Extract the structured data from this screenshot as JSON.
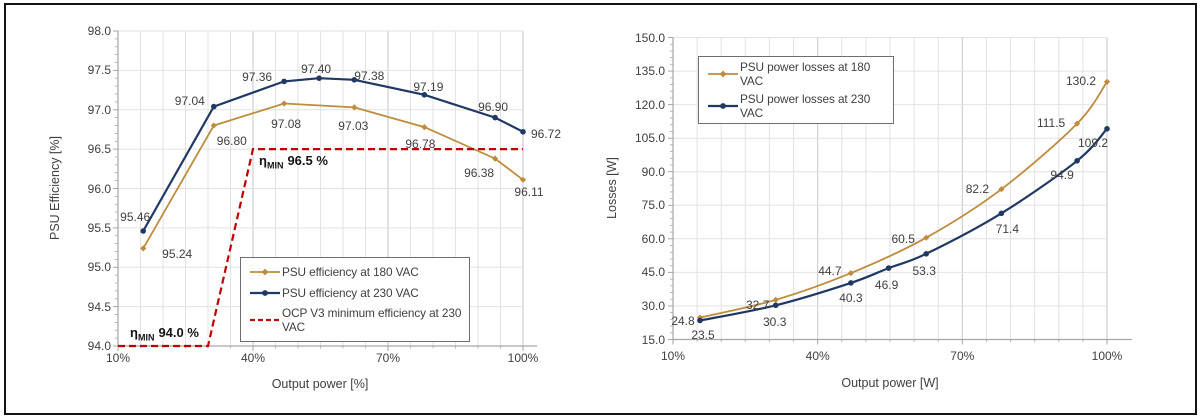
{
  "colors": {
    "series_180vac": "#BE8C3C",
    "series_230vac": "#1F3864",
    "ocp_limit": "#C00000",
    "grid_minor": "#E2E2E2",
    "grid_major": "#C6C6C6",
    "axis_line": "#A6A6A6",
    "text": "#3F3F3F",
    "annotation": "#141414",
    "frame_border": "#141414",
    "legend_border": "#6E6E6E"
  },
  "chart_data": [
    {
      "type": "line",
      "title": "",
      "xlabel": "Output power [%]",
      "ylabel": "PSU Efficiency [%]",
      "xlim": [
        10,
        100
      ],
      "ylim": [
        94,
        98
      ],
      "grid": true,
      "legend_position": "inside-bottom-center",
      "x_tick_values": [
        10,
        40,
        70,
        100
      ],
      "x_tick_labels": [
        "10%",
        "40%",
        "70%",
        "100%"
      ],
      "y_tick_values": [
        98,
        97.5,
        97,
        96.5,
        96,
        95.5,
        95,
        94.5,
        94
      ],
      "y_tick_labels": [
        "98.0",
        "97.5",
        "97.0",
        "96.5",
        "96.0",
        "95.5",
        "95.0",
        "94.5",
        "94.0"
      ],
      "series": [
        {
          "name": "PSU efficiency at 180 VAC",
          "color_key": "series_180vac",
          "slug": "180vac",
          "marker": "diamond",
          "style": "solid",
          "x": [
            15.6,
            31.3,
            46.9,
            62.5,
            78.1,
            93.8,
            100
          ],
          "values": [
            95.24,
            96.8,
            97.08,
            97.03,
            96.78,
            96.38,
            96.11
          ],
          "point_labels": [
            "95.24",
            "96.80",
            "97.08",
            "97.03",
            "96.78",
            "96.38",
            "96.11"
          ]
        },
        {
          "name": "PSU efficiency at 230 VAC",
          "color_key": "series_230vac",
          "slug": "230vac",
          "marker": "circle",
          "style": "solid",
          "x": [
            15.6,
            31.3,
            46.9,
            54.7,
            62.5,
            78.1,
            93.8,
            100
          ],
          "values": [
            95.46,
            97.04,
            97.36,
            97.4,
            97.38,
            97.19,
            96.9,
            96.72
          ],
          "point_labels": [
            "95.46",
            "97.04",
            "97.36",
            "97.40",
            "97.38",
            "97.19",
            "96.90",
            "96.72"
          ]
        },
        {
          "name": "OCP V3 minimum efficiency at 230 VAC",
          "color_key": "ocp_limit",
          "slug": "ocp-limit",
          "marker": "none",
          "style": "dashed",
          "x": [
            10,
            30,
            40,
            100
          ],
          "values": [
            94,
            94,
            96.5,
            96.5
          ],
          "point_labels": []
        }
      ],
      "annotations": [
        {
          "symbol": "η",
          "subscript": "MIN",
          "value": "96.5 %"
        },
        {
          "symbol": "η",
          "subscript": "MIN",
          "value": "94.0 %"
        }
      ]
    },
    {
      "type": "line",
      "title": "",
      "xlabel": "Output power [W]",
      "ylabel": "Losses [W]",
      "xlim": [
        10,
        100
      ],
      "ylim": [
        15,
        150
      ],
      "grid": true,
      "smooth": true,
      "legend_position": "inside-top-left",
      "x_tick_values": [
        10,
        40,
        70,
        100
      ],
      "x_tick_labels": [
        "10%",
        "40%",
        "70%",
        "100%"
      ],
      "y_tick_values": [
        150,
        135,
        120,
        105,
        90,
        75,
        60,
        45,
        30,
        15
      ],
      "y_tick_labels": [
        "150.0",
        "135.0",
        "120.0",
        "105.0",
        "90.0",
        "75.0",
        "60.0",
        "45.0",
        "30.0",
        "15.0"
      ],
      "series": [
        {
          "name": "PSU power losses at 180 VAC",
          "color_key": "series_180vac",
          "slug": "180vac",
          "marker": "diamond",
          "style": "solid",
          "x": [
            15.6,
            31.3,
            46.9,
            62.5,
            78.1,
            93.8,
            100
          ],
          "values": [
            24.8,
            32.7,
            44.7,
            60.5,
            82.2,
            111.5,
            130.2
          ],
          "point_labels": [
            "24.8",
            "32.7",
            "44.7",
            "60.5",
            "82.2",
            "111.5",
            "130.2"
          ]
        },
        {
          "name": "PSU power losses at 230 VAC",
          "color_key": "series_230vac",
          "slug": "230vac",
          "marker": "circle",
          "style": "solid",
          "x": [
            15.6,
            31.3,
            46.9,
            54.7,
            62.5,
            78.1,
            93.8,
            100
          ],
          "values": [
            23.5,
            30.3,
            40.3,
            46.9,
            53.3,
            71.4,
            94.9,
            109.2
          ],
          "point_labels": [
            "23.5",
            "30.3",
            "40.3",
            "46.9",
            "53.3",
            "71.4",
            "94.9",
            "109.2"
          ]
        }
      ]
    }
  ]
}
